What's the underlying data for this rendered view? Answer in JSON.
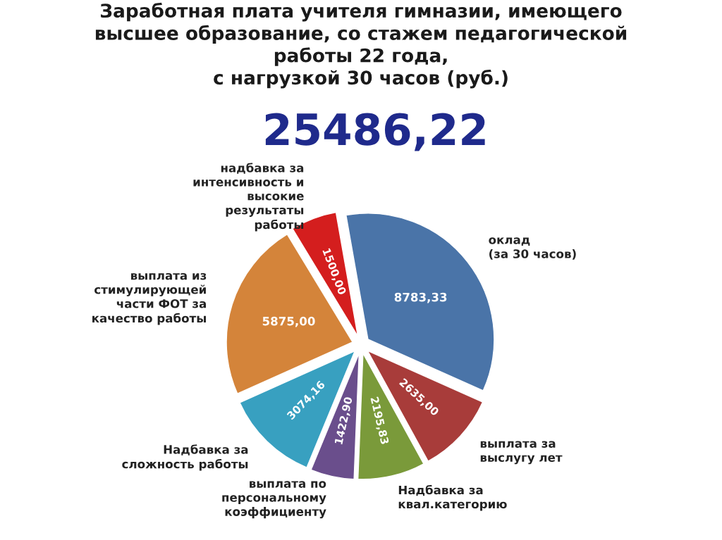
{
  "chart_data": {
    "type": "pie",
    "title": "Заработная плата учителя гимназии, имеющего\nвысшее образование, со стажем педагогической\nработы 22 года,\nс нагрузкой 30 часов (руб.)",
    "subtitle": "25486,22",
    "categories": [
      "оклад\n(за 30 часов)",
      "выплата за\nвыслугу лет",
      "Надбавка за\nквал.категорию",
      "выплата по\nперсональному\nкоэффициенту",
      "Надбавка за\nсложность работы",
      "выплата из\nстимулирующей\nчасти ФОТ за\nкачество работы",
      "надбавка за\nинтенсивность и\nвысокие\nрезультаты\nработы"
    ],
    "values": [
      8783.33,
      2635.0,
      2195.83,
      1422.9,
      3074.16,
      5875.0,
      1500.0
    ],
    "value_labels": [
      "8783,33",
      "2635,00",
      "2195,83",
      "1422,90",
      "3074,16",
      "5875,00",
      "1500,00"
    ],
    "colors": [
      "#4a74a8",
      "#a83c3a",
      "#7a9a3a",
      "#6a4e8c",
      "#38a0c0",
      "#d4843a",
      "#d41e1e"
    ]
  }
}
